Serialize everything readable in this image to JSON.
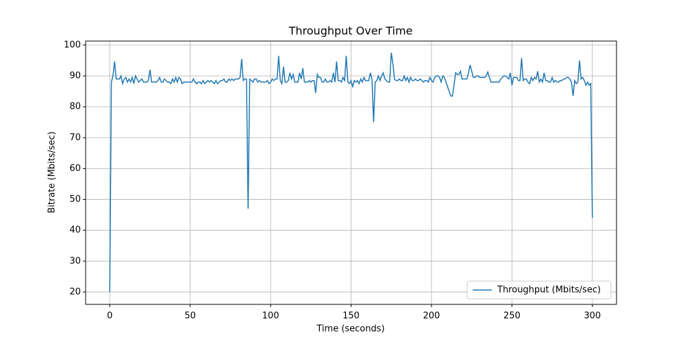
{
  "chart_data": {
    "type": "line",
    "title": "Throughput Over Time",
    "xlabel": "Time (seconds)",
    "ylabel": "Bitrate (Mbits/sec)",
    "x": [
      0,
      1,
      2,
      3,
      4,
      5,
      6,
      7,
      8,
      9,
      10,
      11,
      12,
      13,
      14,
      15,
      16,
      17,
      18,
      19,
      20,
      21,
      22,
      23,
      24,
      25,
      26,
      27,
      28,
      29,
      30,
      31,
      32,
      33,
      34,
      35,
      36,
      37,
      38,
      39,
      40,
      41,
      42,
      43,
      44,
      45,
      46,
      47,
      48,
      49,
      50,
      51,
      52,
      53,
      54,
      55,
      56,
      57,
      58,
      59,
      60,
      61,
      62,
      63,
      64,
      65,
      66,
      67,
      68,
      69,
      70,
      71,
      72,
      73,
      74,
      75,
      76,
      77,
      78,
      79,
      80,
      81,
      82,
      83,
      84,
      85,
      86,
      87,
      88,
      89,
      90,
      91,
      92,
      93,
      94,
      95,
      96,
      97,
      98,
      99,
      100,
      101,
      102,
      103,
      104,
      105,
      106,
      107,
      108,
      109,
      110,
      111,
      112,
      113,
      114,
      115,
      116,
      117,
      118,
      119,
      120,
      121,
      122,
      123,
      124,
      125,
      126,
      127,
      128,
      129,
      130,
      131,
      132,
      133,
      134,
      135,
      136,
      137,
      138,
      139,
      140,
      141,
      142,
      143,
      144,
      145,
      146,
      147,
      148,
      149,
      150,
      151,
      152,
      153,
      154,
      155,
      156,
      157,
      158,
      159,
      160,
      161,
      162,
      163,
      164,
      165,
      166,
      167,
      168,
      169,
      170,
      171,
      172,
      173,
      174,
      175,
      176,
      177,
      178,
      179,
      180,
      181,
      182,
      183,
      184,
      185,
      186,
      187,
      188,
      189,
      190,
      191,
      192,
      193,
      194,
      195,
      196,
      197,
      198,
      199,
      200,
      201,
      202,
      203,
      204,
      205,
      206,
      207,
      208,
      209,
      210,
      211,
      212,
      213,
      214,
      215,
      216,
      217,
      218,
      219,
      220,
      221,
      222,
      223,
      224,
      225,
      226,
      227,
      228,
      229,
      230,
      231,
      232,
      233,
      234,
      235,
      236,
      237,
      238,
      239,
      240,
      241,
      242,
      243,
      244,
      245,
      246,
      247,
      248,
      249,
      250,
      251,
      252,
      253,
      254,
      255,
      256,
      257,
      258,
      259,
      260,
      261,
      262,
      263,
      264,
      265,
      266,
      267,
      268,
      269,
      270,
      271,
      272,
      273,
      274,
      275,
      276,
      277,
      278,
      279,
      280,
      281,
      282,
      283,
      284,
      285,
      286,
      287,
      288,
      289,
      290,
      291,
      292,
      293,
      294,
      295,
      296,
      297,
      298,
      299,
      300
    ],
    "series": [
      {
        "name": "Throughput (Mbits/sec)",
        "color": "#1f77b4",
        "values": [
          20,
          88,
          90,
          94.7,
          89,
          89,
          89,
          90,
          87.5,
          89,
          89.5,
          88,
          89,
          88,
          89.5,
          87.5,
          90,
          89,
          88,
          88.5,
          89,
          88,
          88,
          88,
          88.5,
          92,
          88,
          88,
          88,
          88,
          88.5,
          89.5,
          88,
          88,
          89,
          88.5,
          88,
          88,
          87.5,
          89,
          88,
          89.5,
          88,
          89.5,
          89,
          87.5,
          88,
          88,
          88,
          88,
          88,
          88,
          89,
          88,
          87.5,
          88,
          88,
          87.5,
          88.5,
          87.5,
          88,
          88.5,
          88,
          88.5,
          88,
          87.5,
          88.5,
          87.5,
          88,
          88.5,
          88.5,
          89,
          88,
          88,
          89,
          88.5,
          89,
          88.5,
          89,
          89,
          89,
          89.5,
          95.5,
          88.5,
          89,
          89,
          47,
          89,
          88.5,
          88,
          89,
          89,
          88,
          88.5,
          88,
          88,
          88,
          88,
          88.5,
          87.5,
          88,
          89,
          88.5,
          89,
          89,
          96.5,
          88.5,
          87.5,
          93,
          88,
          88,
          88.5,
          91,
          89,
          90.5,
          88,
          88,
          88,
          91,
          89,
          92.5,
          88,
          88,
          88,
          88.5,
          88,
          88.5,
          88.5,
          84.5,
          90.5,
          89.5,
          89.5,
          88,
          88,
          89,
          88,
          88,
          88.5,
          88,
          91,
          88,
          94.7,
          88.5,
          88.5,
          88,
          89.5,
          88.5,
          96.5,
          88,
          87.5,
          88.5,
          86.5,
          88.5,
          88,
          88.5,
          87.5,
          89,
          88,
          89.5,
          88.5,
          88.5,
          88.5,
          91,
          89,
          75,
          88,
          88.5,
          90,
          88.5,
          90,
          91,
          89,
          88.5,
          88,
          88,
          97.5,
          94,
          89,
          88.5,
          88.5,
          89,
          88.5,
          88.5,
          90,
          88.5,
          89.5,
          88,
          89.5,
          88.5,
          88.5,
          89,
          88.5,
          88.5,
          89,
          88.5,
          88,
          88.5,
          88.5,
          88,
          89.5,
          88.5,
          88,
          89.5,
          90,
          90,
          89.5,
          88,
          90,
          89.5,
          88,
          86.5,
          85,
          83.5,
          83.5,
          87,
          91,
          90.5,
          90.5,
          91.5,
          89,
          89,
          89,
          89,
          91,
          93.5,
          91.5,
          89.5,
          89.5,
          90,
          90,
          89.5,
          89.5,
          89.5,
          89.5,
          90,
          91.3,
          89.5,
          88,
          88,
          88,
          88,
          88,
          88,
          89,
          89.5,
          90,
          90,
          89.5,
          89,
          91,
          87,
          89.5,
          89.5,
          89.5,
          88.5,
          88.5,
          95.8,
          88.5,
          89,
          89,
          88,
          87.5,
          89.5,
          88.5,
          89.5,
          89,
          91.5,
          88,
          89,
          88,
          91,
          88.5,
          88.5,
          88,
          88,
          89.5,
          88,
          88.5,
          88,
          88,
          88.5,
          88.5,
          89,
          89,
          89.5,
          89.5,
          89,
          88,
          83.5,
          88.5,
          87.5,
          88,
          95,
          89,
          89.5,
          88.5,
          87,
          88,
          87,
          87.5,
          44
        ]
      }
    ],
    "xlim": [
      -15,
      315
    ],
    "ylim": [
      16,
      101.3
    ],
    "xticks": [
      0,
      50,
      100,
      150,
      200,
      250,
      300
    ],
    "yticks": [
      20,
      30,
      40,
      50,
      60,
      70,
      80,
      90,
      100
    ],
    "grid": true,
    "legend": "lower right"
  }
}
